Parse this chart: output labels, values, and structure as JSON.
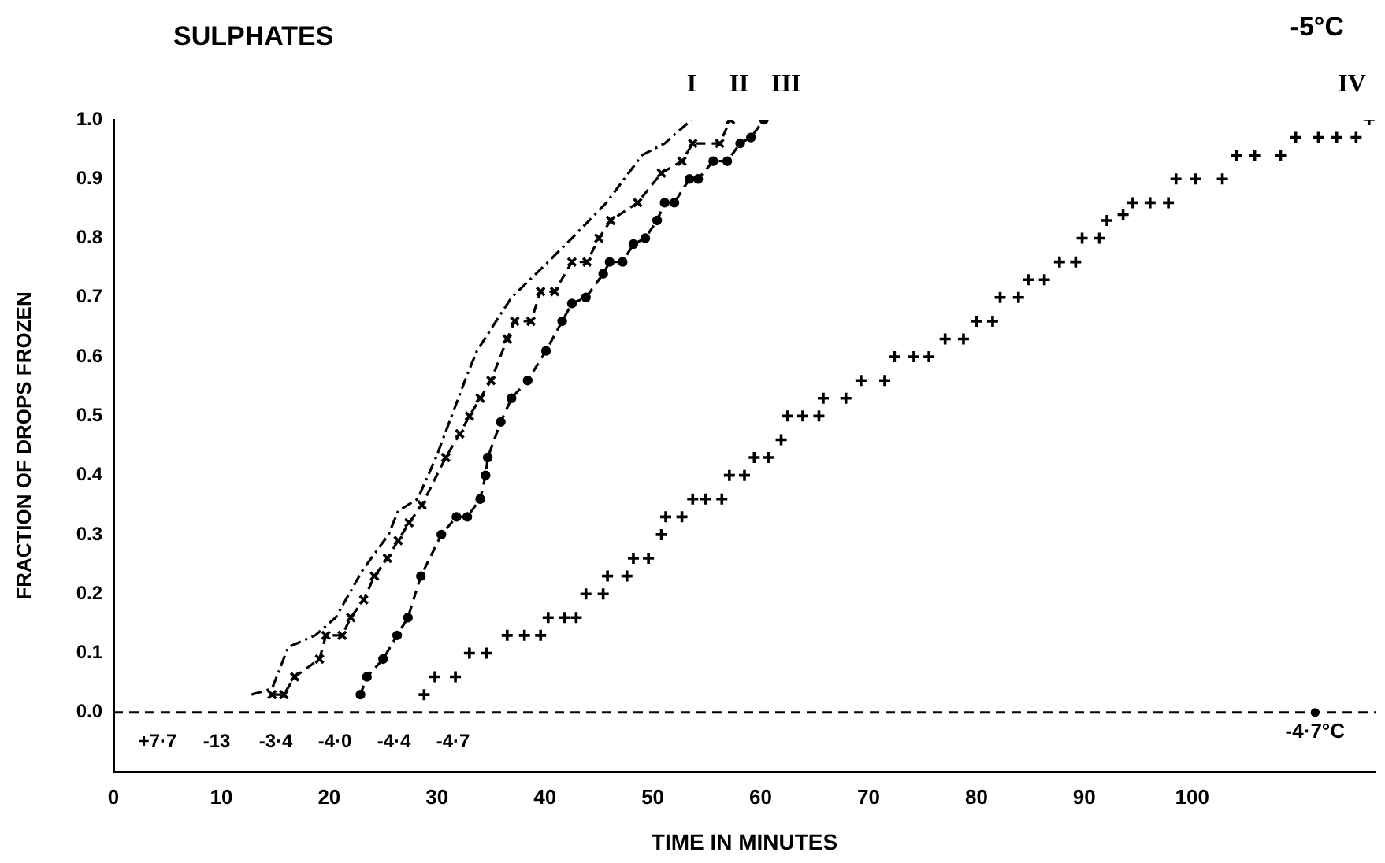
{
  "chart_data": {
    "type": "line",
    "title": "SULPHATES",
    "xlabel": "TIME IN MINUTES",
    "ylabel": "FRACTION OF DROPS FROZEN",
    "xlim": [
      0,
      117
    ],
    "xticks": [
      0,
      10,
      20,
      30,
      40,
      50,
      60,
      70,
      80,
      90,
      100
    ],
    "ylim": [
      -0.1,
      1.0
    ],
    "yticks": [
      {
        "value": 0,
        "label": "0.0"
      },
      {
        "value": 0.1,
        "label": "0.1"
      },
      {
        "value": 0.2,
        "label": "0.2"
      },
      {
        "value": 0.3,
        "label": "0.3"
      },
      {
        "value": 0.4,
        "label": "0.4"
      },
      {
        "value": 0.5,
        "label": "0.5"
      },
      {
        "value": 0.6,
        "label": "0.6"
      },
      {
        "value": 0.7,
        "label": "0.7"
      },
      {
        "value": 0.8,
        "label": "0.8"
      },
      {
        "value": 0.9,
        "label": "0.9"
      },
      {
        "value": 1.0,
        "label": "1.0"
      }
    ],
    "grid": false,
    "legend": false,
    "ref_lines": [
      {
        "axis": "y",
        "value": 0,
        "line_style": "dashed",
        "color": "#000000"
      }
    ],
    "annotations": [
      "-5°C",
      {
        "text": "-4·7°C",
        "x": 111.4,
        "y": 0
      },
      "+7·7",
      "-13",
      "-3·4",
      "-4·0",
      "-4·4",
      "-4·7"
    ],
    "series": [
      {
        "name": "I",
        "color": "#000000",
        "line_style": "dotted",
        "marker": "none",
        "x": [
          12.8,
          14.7,
          16.2,
          18.7,
          20.6,
          23.1,
          25.5,
          26.4,
          28.2,
          29.9,
          32.8,
          33.7,
          36.9,
          40.3,
          42.5,
          45.7,
          49,
          51.1,
          53.6
        ],
        "values": [
          0.03,
          0.04,
          0.11,
          0.13,
          0.16,
          0.24,
          0.3,
          0.34,
          0.36,
          0.43,
          0.57,
          0.61,
          0.7,
          0.76,
          0.8,
          0.86,
          0.94,
          0.96,
          1.0
        ]
      },
      {
        "name": "II",
        "color": "#000000",
        "line_style": "dashed",
        "marker": "cross",
        "x": [
          14.7,
          15.8,
          16.8,
          19.1,
          19.7,
          21.2,
          22,
          23.2,
          24.2,
          25.4,
          26.4,
          27.4,
          28.6,
          30.8,
          32.1,
          33,
          34,
          35,
          36.5,
          37.2,
          38.7,
          39.6,
          40.9,
          42.5,
          43.9,
          45,
          46.1,
          48.6,
          50.8,
          52.7,
          53.7,
          56.2,
          57.2
        ],
        "values": [
          0.03,
          0.03,
          0.06,
          0.09,
          0.13,
          0.13,
          0.16,
          0.19,
          0.23,
          0.26,
          0.29,
          0.32,
          0.35,
          0.43,
          0.47,
          0.5,
          0.53,
          0.56,
          0.63,
          0.66,
          0.66,
          0.71,
          0.71,
          0.76,
          0.76,
          0.8,
          0.83,
          0.86,
          0.91,
          0.93,
          0.96,
          0.96,
          1.0
        ]
      },
      {
        "name": "III",
        "color": "#000000",
        "line_style": "dashed",
        "marker": "circle",
        "x": [
          22.9,
          23.5,
          25,
          26.3,
          27.3,
          28.5,
          30.4,
          31.8,
          32.8,
          34,
          34.5,
          34.7,
          35.9,
          36.9,
          38.4,
          40.1,
          41.6,
          42.5,
          43.8,
          45.4,
          46,
          47.2,
          48.2,
          49.3,
          50.4,
          51.1,
          52,
          53.4,
          54.2,
          55.6,
          56.9,
          58.1,
          59.1,
          60.3
        ],
        "values": [
          0.03,
          0.06,
          0.09,
          0.13,
          0.16,
          0.23,
          0.3,
          0.33,
          0.33,
          0.36,
          0.4,
          0.43,
          0.49,
          0.53,
          0.56,
          0.61,
          0.66,
          0.69,
          0.7,
          0.74,
          0.76,
          0.76,
          0.79,
          0.8,
          0.83,
          0.86,
          0.86,
          0.9,
          0.9,
          0.93,
          0.93,
          0.96,
          0.97,
          1.0
        ]
      },
      {
        "name": "IV",
        "type": "scatter",
        "color": "#000000",
        "marker": "cross",
        "x": [
          28.8,
          29.8,
          31.7,
          33,
          34.6,
          36.5,
          38.1,
          39.6,
          40.3,
          41.8,
          42.9,
          43.8,
          45.4,
          45.8,
          47.6,
          48.2,
          49.6,
          50.8,
          51.2,
          52.7,
          53.7,
          54.9,
          56.4,
          57.1,
          58.5,
          59.4,
          60.7,
          61.9,
          62.5,
          63.9,
          65.4,
          65.8,
          67.9,
          69.3,
          71.5,
          72.4,
          74.2,
          75.6,
          77.1,
          78.8,
          80,
          81.5,
          82.2,
          83.9,
          84.8,
          86.3,
          87.7,
          89.2,
          89.8,
          91.4,
          92.1,
          93.6,
          94.5,
          96.1,
          97.8,
          98.5,
          100.3,
          102.8,
          104.1,
          105.8,
          108.2,
          109.6,
          111.7,
          113.4,
          115.2,
          116.4
        ],
        "values": [
          0.03,
          0.06,
          0.06,
          0.1,
          0.1,
          0.13,
          0.13,
          0.13,
          0.16,
          0.16,
          0.16,
          0.2,
          0.2,
          0.23,
          0.23,
          0.26,
          0.26,
          0.3,
          0.33,
          0.33,
          0.36,
          0.36,
          0.36,
          0.4,
          0.4,
          0.43,
          0.43,
          0.46,
          0.5,
          0.5,
          0.5,
          0.53,
          0.53,
          0.56,
          0.56,
          0.6,
          0.6,
          0.6,
          0.63,
          0.63,
          0.66,
          0.66,
          0.7,
          0.7,
          0.73,
          0.73,
          0.76,
          0.76,
          0.8,
          0.8,
          0.83,
          0.84,
          0.86,
          0.86,
          0.86,
          0.9,
          0.9,
          0.9,
          0.94,
          0.94,
          0.94,
          0.97,
          0.97,
          0.97,
          0.97,
          1.0
        ]
      }
    ]
  }
}
